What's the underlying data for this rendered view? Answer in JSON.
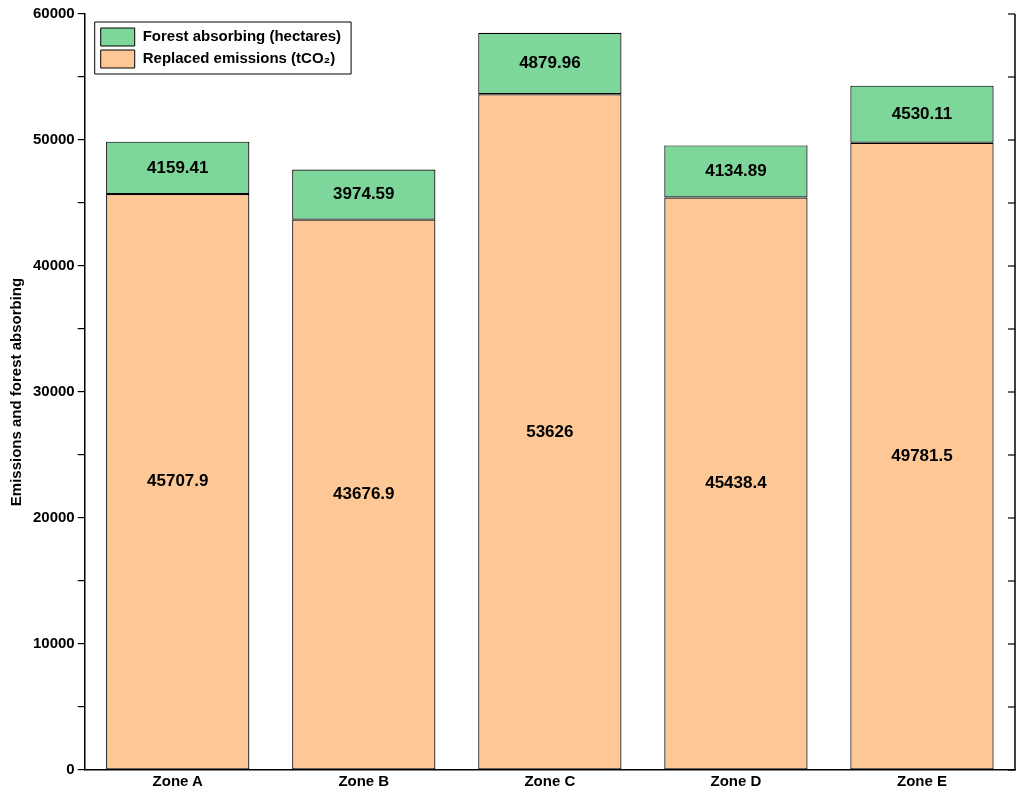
{
  "chart_data": {
    "type": "bar",
    "stacked": true,
    "ylabel": "Emissions and forest absorbing",
    "categories": [
      "Zone A",
      "Zone B",
      "Zone C",
      "Zone D",
      "Zone E"
    ],
    "series": [
      {
        "name": "Replaced emissions (tCO₂)",
        "color": "#fdc896",
        "values": [
          45707.9,
          43676.9,
          53626,
          45438.4,
          49781.5
        ]
      },
      {
        "name": "Forest absorbing (hectares)",
        "color": "#7dd69a",
        "values": [
          4159.41,
          3974.59,
          4879.96,
          4134.89,
          4530.11
        ]
      }
    ],
    "ylim": [
      0,
      60000
    ],
    "yticks": [
      0,
      {
        "value": 5000,
        "label": null
      },
      10000,
      {
        "value": 15000,
        "label": null
      },
      20000,
      {
        "value": 25000,
        "label": null
      },
      30000,
      {
        "value": 35000,
        "label": null
      },
      40000,
      {
        "value": 45000,
        "label": null
      },
      50000,
      {
        "value": 55000,
        "label": null
      },
      60000
    ],
    "data_labels": true,
    "legend": "top left",
    "grid": false
  }
}
